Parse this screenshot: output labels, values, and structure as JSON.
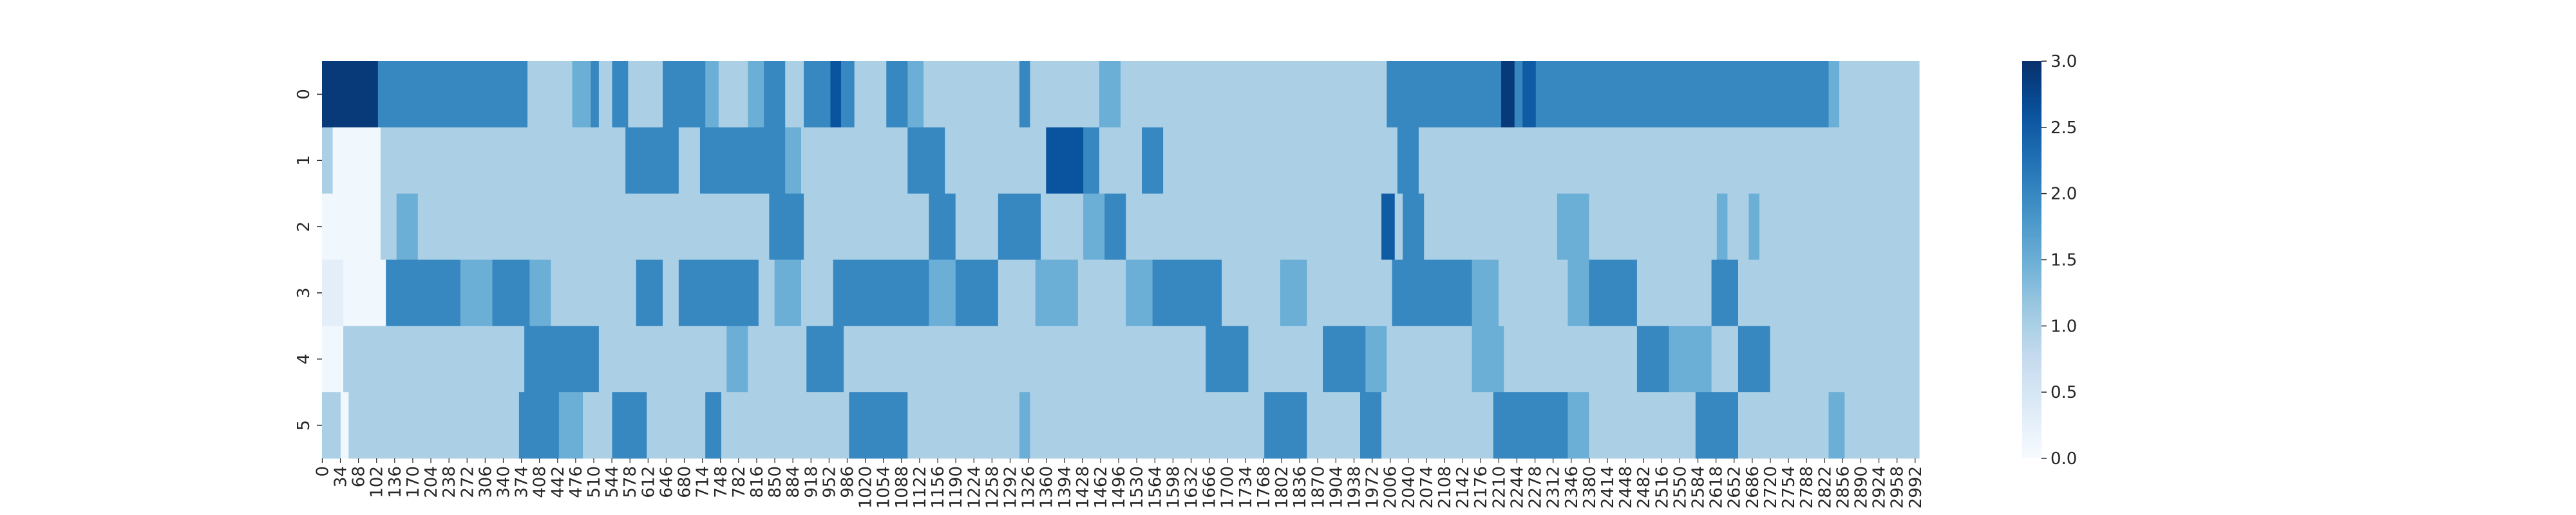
{
  "chart_data": {
    "type": "heatmap",
    "title": "",
    "xlabel": "",
    "ylabel": "",
    "row_labels": [
      "0",
      "1",
      "2",
      "3",
      "4",
      "5"
    ],
    "x_range": [
      0,
      3000
    ],
    "x_ticks": [
      0,
      34,
      68,
      102,
      136,
      170,
      204,
      238,
      272,
      306,
      340,
      374,
      408,
      442,
      476,
      510,
      544,
      578,
      612,
      646,
      680,
      714,
      748,
      782,
      816,
      850,
      884,
      918,
      952,
      986,
      1020,
      1054,
      1088,
      1122,
      1156,
      1190,
      1224,
      1258,
      1292,
      1326,
      1360,
      1394,
      1428,
      1462,
      1496,
      1530,
      1564,
      1598,
      1632,
      1666,
      1700,
      1734,
      1768,
      1802,
      1836,
      1870,
      1904,
      1938,
      1972,
      2006,
      2040,
      2074,
      2108,
      2142,
      2176,
      2210,
      2244,
      2278,
      2312,
      2346,
      2380,
      2414,
      2448,
      2482,
      2516,
      2550,
      2584,
      2618,
      2652,
      2686,
      2720,
      2754,
      2788,
      2822,
      2856,
      2890,
      2924,
      2958,
      2992
    ],
    "colorbar": {
      "min": 0.0,
      "max": 3.0,
      "ticks": [
        "0.0",
        "0.5",
        "1.0",
        "1.5",
        "2.0",
        "2.5",
        "3.0"
      ]
    },
    "colors": {
      "low": "#f7fbff",
      "mid": "#9ecae1",
      "high": "#08306b"
    },
    "rows": [
      [
        [
          0,
          105,
          2.9
        ],
        [
          105,
          386,
          2.0
        ],
        [
          386,
          470,
          1.0
        ],
        [
          470,
          505,
          1.5
        ],
        [
          505,
          520,
          2.0
        ],
        [
          520,
          545,
          1.0
        ],
        [
          545,
          575,
          2.0
        ],
        [
          575,
          640,
          1.0
        ],
        [
          640,
          720,
          2.0
        ],
        [
          720,
          745,
          1.5
        ],
        [
          745,
          800,
          1.0
        ],
        [
          800,
          830,
          1.5
        ],
        [
          830,
          870,
          2.0
        ],
        [
          870,
          905,
          1.0
        ],
        [
          905,
          955,
          2.0
        ],
        [
          955,
          975,
          2.6
        ],
        [
          975,
          1000,
          2.0
        ],
        [
          1000,
          1060,
          1.0
        ],
        [
          1060,
          1100,
          2.0
        ],
        [
          1100,
          1130,
          1.5
        ],
        [
          1130,
          1260,
          1.0
        ],
        [
          1260,
          1310,
          1.0
        ],
        [
          1310,
          1330,
          2.0
        ],
        [
          1330,
          1460,
          1.0
        ],
        [
          1460,
          1500,
          1.5
        ],
        [
          1500,
          2000,
          1.0
        ],
        [
          2000,
          2055,
          2.0
        ],
        [
          2055,
          2215,
          2.0
        ],
        [
          2215,
          2240,
          2.9
        ],
        [
          2240,
          2255,
          2.0
        ],
        [
          2255,
          2280,
          2.5
        ],
        [
          2280,
          2560,
          2.0
        ],
        [
          2560,
          2700,
          2.0
        ],
        [
          2700,
          2830,
          2.0
        ],
        [
          2830,
          2850,
          1.5
        ],
        [
          2850,
          3000,
          1.0
        ]
      ],
      [
        [
          0,
          20,
          1.0
        ],
        [
          20,
          110,
          0.1
        ],
        [
          110,
          570,
          1.0
        ],
        [
          570,
          670,
          2.0
        ],
        [
          670,
          710,
          1.0
        ],
        [
          710,
          870,
          2.0
        ],
        [
          870,
          900,
          1.5
        ],
        [
          900,
          975,
          1.0
        ],
        [
          975,
          1100,
          1.0
        ],
        [
          1100,
          1170,
          2.0
        ],
        [
          1170,
          1240,
          1.0
        ],
        [
          1240,
          1360,
          1.0
        ],
        [
          1360,
          1430,
          2.6
        ],
        [
          1430,
          1460,
          2.0
        ],
        [
          1460,
          1540,
          1.0
        ],
        [
          1540,
          1580,
          2.0
        ],
        [
          1580,
          2020,
          1.0
        ],
        [
          2020,
          2060,
          2.0
        ],
        [
          2060,
          2760,
          1.0
        ],
        [
          2760,
          3000,
          1.0
        ]
      ],
      [
        [
          0,
          110,
          0.1
        ],
        [
          110,
          140,
          1.0
        ],
        [
          140,
          180,
          1.5
        ],
        [
          180,
          840,
          1.0
        ],
        [
          840,
          905,
          2.0
        ],
        [
          905,
          1140,
          1.0
        ],
        [
          1140,
          1190,
          2.0
        ],
        [
          1190,
          1270,
          1.0
        ],
        [
          1270,
          1350,
          2.0
        ],
        [
          1350,
          1430,
          1.0
        ],
        [
          1430,
          1470,
          1.5
        ],
        [
          1470,
          1510,
          2.0
        ],
        [
          1510,
          1620,
          1.0
        ],
        [
          1620,
          1820,
          1.0
        ],
        [
          1820,
          1990,
          1.0
        ],
        [
          1990,
          2015,
          2.5
        ],
        [
          2015,
          2030,
          1.0
        ],
        [
          2030,
          2070,
          2.0
        ],
        [
          2070,
          2130,
          1.0
        ],
        [
          2130,
          2320,
          1.0
        ],
        [
          2320,
          2380,
          1.5
        ],
        [
          2380,
          2480,
          1.0
        ],
        [
          2480,
          2620,
          1.0
        ],
        [
          2620,
          2640,
          1.5
        ],
        [
          2640,
          2680,
          1.0
        ],
        [
          2680,
          2700,
          1.5
        ],
        [
          2700,
          3000,
          1.0
        ]
      ],
      [
        [
          0,
          40,
          0.3
        ],
        [
          40,
          120,
          0.1
        ],
        [
          120,
          200,
          2.0
        ],
        [
          200,
          260,
          2.0
        ],
        [
          260,
          320,
          1.5
        ],
        [
          320,
          390,
          2.0
        ],
        [
          390,
          430,
          1.5
        ],
        [
          430,
          470,
          1.0
        ],
        [
          470,
          530,
          1.0
        ],
        [
          530,
          590,
          1.0
        ],
        [
          590,
          640,
          2.0
        ],
        [
          640,
          670,
          1.0
        ],
        [
          670,
          820,
          2.0
        ],
        [
          820,
          850,
          1.0
        ],
        [
          850,
          900,
          1.5
        ],
        [
          900,
          960,
          1.0
        ],
        [
          960,
          1140,
          2.0
        ],
        [
          1140,
          1190,
          1.5
        ],
        [
          1190,
          1270,
          2.0
        ],
        [
          1270,
          1340,
          1.0
        ],
        [
          1340,
          1420,
          1.5
        ],
        [
          1420,
          1510,
          1.0
        ],
        [
          1510,
          1560,
          1.5
        ],
        [
          1560,
          1690,
          2.0
        ],
        [
          1690,
          1800,
          1.0
        ],
        [
          1800,
          1850,
          1.5
        ],
        [
          1850,
          2010,
          1.0
        ],
        [
          2010,
          2070,
          2.0
        ],
        [
          2070,
          2160,
          2.0
        ],
        [
          2160,
          2210,
          1.5
        ],
        [
          2210,
          2340,
          1.0
        ],
        [
          2340,
          2380,
          1.5
        ],
        [
          2380,
          2470,
          2.0
        ],
        [
          2470,
          2610,
          1.0
        ],
        [
          2610,
          2660,
          2.0
        ],
        [
          2660,
          3000,
          1.0
        ]
      ],
      [
        [
          0,
          40,
          0.1
        ],
        [
          40,
          100,
          1.0
        ],
        [
          100,
          380,
          1.0
        ],
        [
          380,
          520,
          2.0
        ],
        [
          520,
          760,
          1.0
        ],
        [
          760,
          800,
          1.5
        ],
        [
          800,
          910,
          1.0
        ],
        [
          910,
          980,
          2.0
        ],
        [
          980,
          1660,
          1.0
        ],
        [
          1660,
          1740,
          2.0
        ],
        [
          1740,
          1880,
          1.0
        ],
        [
          1880,
          1960,
          2.0
        ],
        [
          1960,
          2000,
          1.5
        ],
        [
          2000,
          2160,
          1.0
        ],
        [
          2160,
          2220,
          1.5
        ],
        [
          2220,
          2470,
          1.0
        ],
        [
          2470,
          2530,
          2.0
        ],
        [
          2530,
          2610,
          1.5
        ],
        [
          2610,
          2660,
          1.0
        ],
        [
          2660,
          2720,
          2.0
        ],
        [
          2720,
          2940,
          1.0
        ],
        [
          2940,
          3000,
          1.0
        ]
      ],
      [
        [
          0,
          35,
          1.0
        ],
        [
          35,
          50,
          0.1
        ],
        [
          50,
          370,
          1.0
        ],
        [
          370,
          445,
          2.0
        ],
        [
          445,
          490,
          1.5
        ],
        [
          490,
          545,
          1.0
        ],
        [
          545,
          610,
          2.0
        ],
        [
          610,
          650,
          1.0
        ],
        [
          650,
          720,
          1.0
        ],
        [
          720,
          750,
          2.0
        ],
        [
          750,
          990,
          1.0
        ],
        [
          990,
          1070,
          2.0
        ],
        [
          1070,
          1100,
          2.0
        ],
        [
          1100,
          1310,
          1.0
        ],
        [
          1310,
          1330,
          1.5
        ],
        [
          1330,
          1770,
          1.0
        ],
        [
          1770,
          1850,
          2.0
        ],
        [
          1850,
          1950,
          1.0
        ],
        [
          1950,
          1990,
          2.0
        ],
        [
          1990,
          2200,
          1.0
        ],
        [
          2200,
          2340,
          2.0
        ],
        [
          2340,
          2380,
          1.5
        ],
        [
          2380,
          2470,
          1.0
        ],
        [
          2470,
          2520,
          1.0
        ],
        [
          2520,
          2580,
          1.0
        ],
        [
          2580,
          2660,
          2.0
        ],
        [
          2660,
          2830,
          1.0
        ],
        [
          2830,
          2860,
          1.5
        ],
        [
          2860,
          3000,
          1.0
        ]
      ]
    ]
  }
}
